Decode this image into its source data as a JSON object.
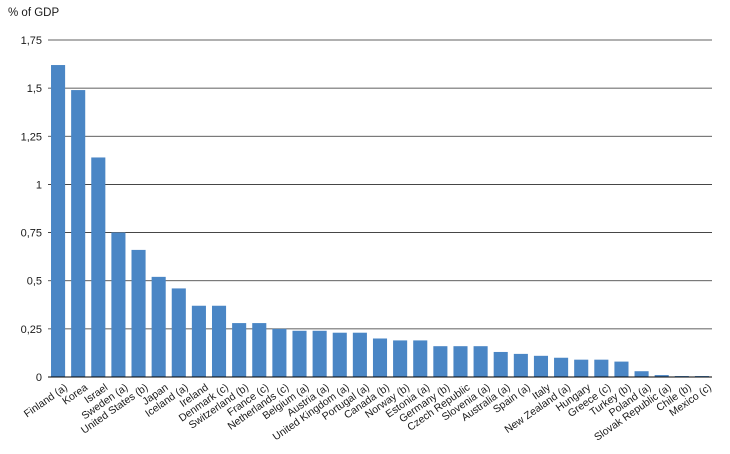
{
  "chart_data": {
    "type": "bar",
    "ylabel": "% of GDP",
    "ylim": [
      0,
      1.75
    ],
    "yticks": [
      {
        "value": 0,
        "label": "0"
      },
      {
        "value": 0.25,
        "label": "0,25"
      },
      {
        "value": 0.5,
        "label": "0,5"
      },
      {
        "value": 0.75,
        "label": "0,75"
      },
      {
        "value": 1,
        "label": "1"
      },
      {
        "value": 1.25,
        "label": "1,25"
      },
      {
        "value": 1.5,
        "label": "1,5"
      },
      {
        "value": 1.75,
        "label": "1,75"
      }
    ],
    "grid": true,
    "bar_color": "#4a86c5",
    "categories": [
      "Finland (a)",
      "Korea",
      "Israel",
      "Sweden (a)",
      "United States (b)",
      "Japan",
      "Iceland (a)",
      "Ireland",
      "Denmark (c)",
      "Switzerland (b)",
      "France (c)",
      "Netherlands (c)",
      "Belgium (a)",
      "Austria (a)",
      "United Kingdom (a)",
      "Portugal (a)",
      "Canada (b)",
      "Norway (b)",
      "Estonia (a)",
      "Germany (b)",
      "Czech Republic",
      "Slovenia (a)",
      "Australia (a)",
      "Spain (a)",
      "Italy",
      "New Zealand (a)",
      "Hungary",
      "Greece (c)",
      "Turkey (b)",
      "Poland (a)",
      "Slovak Republic (a)",
      "Chile (b)",
      "Mexico (c)"
    ],
    "values": [
      1.62,
      1.49,
      1.14,
      0.75,
      0.66,
      0.52,
      0.46,
      0.37,
      0.37,
      0.28,
      0.28,
      0.25,
      0.24,
      0.24,
      0.23,
      0.23,
      0.2,
      0.19,
      0.19,
      0.16,
      0.16,
      0.16,
      0.13,
      0.12,
      0.11,
      0.1,
      0.09,
      0.09,
      0.08,
      0.03,
      0.01,
      0.005,
      0.005
    ]
  }
}
